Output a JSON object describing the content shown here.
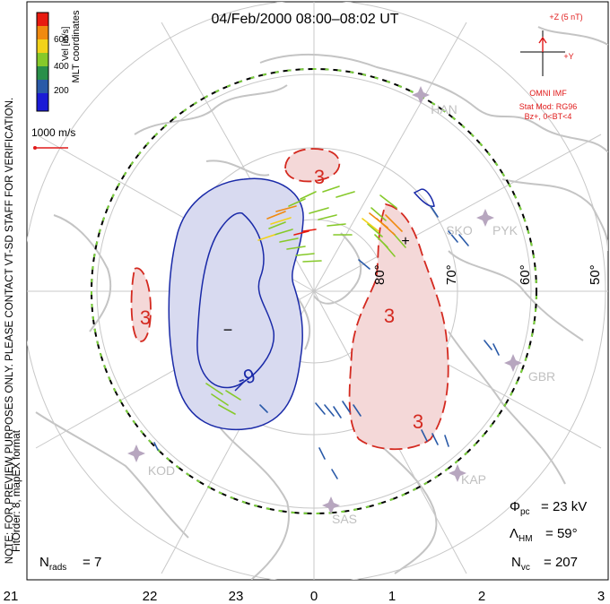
{
  "title": "04/Feb/2000 08:00–08:02 UT",
  "side_note": {
    "line1": "NOTE: FOR PREVIEW PURPOSES ONLY. PLEASE CONTACT VT-SD STAFF FOR VERIFICATION.",
    "line2": "FitOrder: 8, mapEX format"
  },
  "coords_label": "MLT coordinates",
  "colorbar": {
    "label": "Vel [m/s]",
    "ticks": [
      "600",
      "400",
      "200"
    ],
    "colors": [
      "#e81a10",
      "#f08a10",
      "#f2d21a",
      "#86c92a",
      "#2a8f4a",
      "#2a5aa8",
      "#1b1bd6"
    ]
  },
  "scale_vector": "1000 m/s",
  "imf": {
    "z_label": "+Z (5 nT)",
    "y_label": "+Y",
    "source": "OMNI IMF",
    "model_line1": "Stat Mod: RG96",
    "model_line2": "Bz+, 0<BT<4",
    "color": "#e01a1a"
  },
  "stations": [
    "HAN",
    "PYK",
    "SKO",
    "GBR",
    "KAP",
    "SAS",
    "KOD"
  ],
  "latitude_labels": [
    "80°",
    "70°",
    "60°",
    "50°"
  ],
  "mlt_labels": [
    "21",
    "22",
    "23",
    "0",
    "1",
    "2",
    "3"
  ],
  "contours": {
    "positive": [
      "3",
      "3",
      "3",
      "3"
    ],
    "negative": [
      "-9"
    ],
    "positive_color": "#d42a20",
    "negative_color": "#1a2aa8"
  },
  "markers": {
    "min": "−",
    "max": "+"
  },
  "stats": {
    "phi_pc": "23 kV",
    "lambda_hm": "59°",
    "n_vc": "207",
    "n_rads": "7"
  }
}
